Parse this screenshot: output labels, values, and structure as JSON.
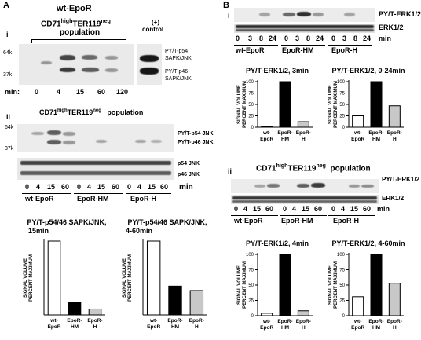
{
  "panel_A": {
    "letter": "A",
    "title": "wt-EpoR",
    "sub_i": {
      "roman": "i",
      "population_html_parts": [
        "CD71",
        "high",
        "TER119",
        "neg"
      ],
      "population_word": "population",
      "control_line1": "(+)",
      "control_line2": "control",
      "mw_64": "64k",
      "mw_37": "37k",
      "band_p54": "PY/T-p54",
      "band_p54b": "SAPK/JNK",
      "band_p46": "PY/T-p46",
      "band_p46b": "SAPK/JNK",
      "min_label": "min:",
      "times": [
        "0",
        "4",
        "15",
        "60",
        "120"
      ]
    },
    "sub_ii": {
      "roman": "ii",
      "population_parts": [
        "CD71",
        "high",
        "TER119",
        "neg"
      ],
      "population_word": "population",
      "mw_64": "64k",
      "mw_37": "37k",
      "band_p54": "PY/T-p54  JNK",
      "band_p46": "PY/T-p46  JNK",
      "band_tp54": "p54  JNK",
      "band_tp46": "p46  JNK",
      "times": [
        "0",
        "4",
        "15",
        "60",
        "0",
        "4",
        "15",
        "60",
        "0",
        "4",
        "15",
        "60"
      ],
      "min_label": "min",
      "groups": [
        "wt-EpoR",
        "EpoR-HM",
        "EpoR-H"
      ]
    }
  },
  "panel_B": {
    "letter": "B",
    "sub_i": {
      "roman": "i",
      "band_py": "PY/T-ERK1/2",
      "band_total": "ERK1/2",
      "times": [
        "0",
        "3",
        "8",
        "24",
        "0",
        "3",
        "8",
        "24",
        "0",
        "3",
        "8",
        "24"
      ],
      "min_label": "min",
      "groups": [
        "wt-EpoR",
        "EpoR-HM",
        "EpoR-H"
      ]
    },
    "sub_ii": {
      "roman": "ii",
      "population_parts": [
        "CD71",
        "high",
        "TER119",
        "neg"
      ],
      "population_word": "population",
      "band_py": "PY/T-ERK1/2",
      "band_total": "ERK1/2",
      "times": [
        "0",
        "4",
        "15",
        "60",
        "0",
        "4",
        "15",
        "60",
        "0",
        "4",
        "15",
        "60"
      ],
      "min_label": "min",
      "groups": [
        "wt-EpoR",
        "EpoR-HM",
        "EpoR-H"
      ]
    }
  },
  "chart_data": [
    {
      "id": "A-left",
      "type": "bar",
      "title_line1": "PY/T-p54/46  SAPK/JNK,",
      "title_line2": "15min",
      "ylabel_line1": "SIGNAL VOLUME",
      "ylabel_line2": "PERCENT MAXIMUM",
      "categories": [
        "wt-\nEpoR",
        "EpoR-\nHM",
        "EpoR-\nH"
      ],
      "values": [
        100,
        17,
        8
      ],
      "colors": [
        "#ffffff",
        "#000000",
        "#c8c8c8"
      ],
      "ylim": [
        0,
        100
      ],
      "yticks": []
    },
    {
      "id": "A-right",
      "type": "bar",
      "title_line1": "PY/T-p54/46  SAPK/JNK,",
      "title_line2": "4-60min",
      "ylabel_line1": "SIGNAL VOLUME",
      "ylabel_line2": "PERCENT MAXIMUM",
      "categories": [
        "wt-\nEpoR",
        "EpoR-\nHM",
        "EpoR-\nH"
      ],
      "values": [
        100,
        39,
        33
      ],
      "colors": [
        "#ffffff",
        "#000000",
        "#c8c8c8"
      ],
      "ylim": [
        0,
        100
      ],
      "yticks": []
    },
    {
      "id": "B-i-left",
      "type": "bar",
      "title_line1": "PY/T-ERK1/2,  3min",
      "title_line2": "",
      "ylabel_line1": "SIGNAL VOLUME",
      "ylabel_line2": "PERCENT MAXIMUM",
      "categories": [
        "wt-\nEpoR",
        "EpoR-\nHM",
        "EpoR-\nH"
      ],
      "values": [
        1,
        100,
        12
      ],
      "colors": [
        "#ffffff",
        "#000000",
        "#c8c8c8"
      ],
      "ylim": [
        0,
        100
      ],
      "yticks": [
        0,
        25,
        50,
        75,
        100
      ]
    },
    {
      "id": "B-i-right",
      "type": "bar",
      "title_line1": "PY/T-ERK1/2,  0-24min",
      "title_line2": "",
      "ylabel_line1": "SIGNAL VOLUME",
      "ylabel_line2": "PERCENT MAXIMUM",
      "categories": [
        "wt-\nEpoR",
        "EpoR-\nHM",
        "EpoR-\nH"
      ],
      "values": [
        25,
        100,
        47
      ],
      "colors": [
        "#ffffff",
        "#000000",
        "#c8c8c8"
      ],
      "ylim": [
        0,
        100
      ],
      "yticks": [
        0,
        25,
        50,
        75,
        100
      ]
    },
    {
      "id": "B-ii-left",
      "type": "bar",
      "title_line1": "PY/T-ERK1/2,  4min",
      "title_line2": "",
      "ylabel_line1": "SIGNAL VOLUME",
      "ylabel_line2": "PERCENT MAXIMUM",
      "categories": [
        "wt-\nEpoR",
        "EpoR-\nHM",
        "EpoR-\nH"
      ],
      "values": [
        4,
        100,
        8
      ],
      "colors": [
        "#ffffff",
        "#000000",
        "#c8c8c8"
      ],
      "ylim": [
        0,
        100
      ],
      "yticks": [
        0,
        25,
        50,
        75,
        100
      ]
    },
    {
      "id": "B-ii-right",
      "type": "bar",
      "title_line1": "PY/T-ERK1/2,  4-60min",
      "title_line2": "",
      "ylabel_line1": "SIGNAL VOLUME",
      "ylabel_line2": "PERCENT MAXIMUM",
      "categories": [
        "wt-\nEpoR",
        "EpoR-\nHM",
        "EpoR-\nH"
      ],
      "values": [
        31,
        100,
        53
      ],
      "colors": [
        "#ffffff",
        "#000000",
        "#c8c8c8"
      ],
      "ylim": [
        0,
        100
      ],
      "yticks": [
        0,
        25,
        50,
        75,
        100
      ]
    }
  ]
}
